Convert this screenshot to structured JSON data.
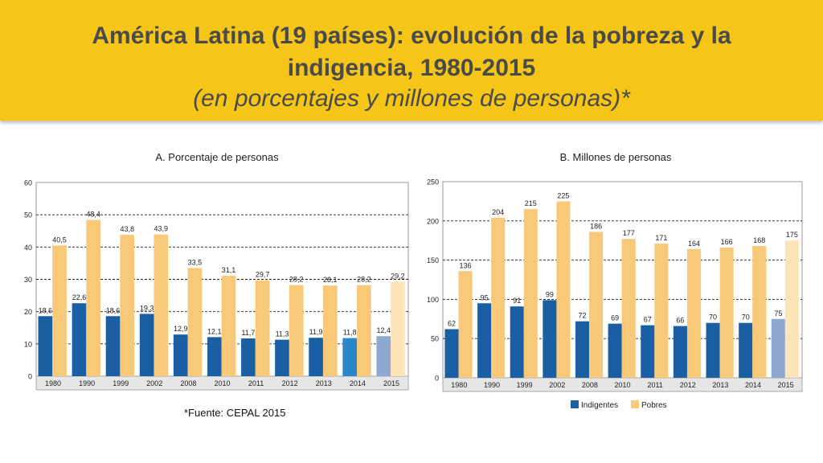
{
  "header": {
    "title_line1": "América Latina (19 países): evolución de la pobreza y la",
    "title_line2": "indigencia, 1980-2015",
    "subtitle": "(en porcentajes y millones de personas)*"
  },
  "source": "*Fuente: CEPAL 2015",
  "colors": {
    "header": "#f5c518",
    "indigentes": "#1a5fa3",
    "pobres": "#f9c97a",
    "indigentes_proj_2014": "#2a86c8",
    "indigentes_proj_2015": "#8ea8d0",
    "pobres_proj_2015": "#fde5b8"
  },
  "chart_data": [
    {
      "type": "bar",
      "title": "A. Porcentaje de personas",
      "categories": [
        "1980",
        "1990",
        "1999",
        "2002",
        "2008",
        "2010",
        "2011",
        "2012",
        "2013",
        "2014",
        "2015"
      ],
      "series": [
        {
          "name": "Indigentes",
          "values": [
            18.6,
            22.6,
            18.6,
            19.3,
            12.9,
            12.1,
            11.7,
            11.3,
            11.9,
            11.8,
            12.4
          ],
          "labels": [
            "18,6",
            "22,6",
            "18,6",
            "19,3",
            "12,9",
            "12,1",
            "11,7",
            "11,3",
            "11,9",
            "11,8",
            "12,4"
          ]
        },
        {
          "name": "Pobres",
          "values": [
            40.5,
            48.4,
            43.8,
            43.9,
            33.5,
            31.1,
            29.7,
            28.2,
            28.1,
            28.2,
            29.2
          ],
          "labels": [
            "40,5",
            "48,4",
            "43,8",
            "43,9",
            "33,5",
            "31,1",
            "29,7",
            "28,2",
            "28,1",
            "28,2",
            "29,2"
          ]
        }
      ],
      "ylim": [
        0,
        60
      ],
      "yticks": [
        0,
        10,
        20,
        30,
        40,
        50,
        60
      ],
      "grid": true
    },
    {
      "type": "bar",
      "title": "B. Millones de personas",
      "categories": [
        "1980",
        "1990",
        "1999",
        "2002",
        "2008",
        "2010",
        "2011",
        "2012",
        "2013",
        "2014",
        "2015"
      ],
      "series": [
        {
          "name": "Indigentes",
          "values": [
            62,
            95,
            91,
            99,
            72,
            69,
            67,
            66,
            70,
            70,
            75
          ],
          "labels": [
            "62",
            "95",
            "91",
            "99",
            "72",
            "69",
            "67",
            "66",
            "70",
            "70",
            "75"
          ]
        },
        {
          "name": "Pobres",
          "values": [
            136,
            204,
            215,
            225,
            186,
            177,
            171,
            164,
            166,
            168,
            175
          ],
          "labels": [
            "136",
            "204",
            "215",
            "225",
            "186",
            "177",
            "171",
            "164",
            "166",
            "168",
            "175"
          ]
        }
      ],
      "ylim": [
        0,
        250
      ],
      "yticks": [
        0,
        50,
        100,
        150,
        200,
        250
      ],
      "grid": true,
      "legend": [
        "Indigentes",
        "Pobres"
      ],
      "legend_position": "bottom"
    }
  ]
}
